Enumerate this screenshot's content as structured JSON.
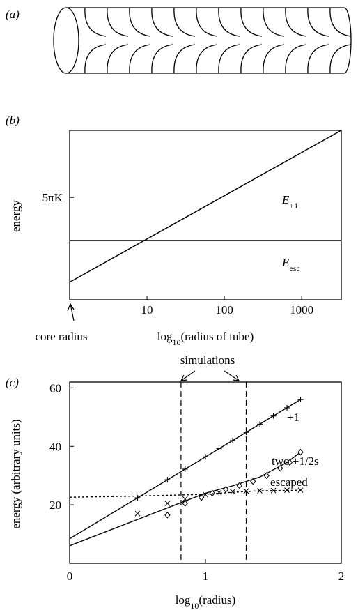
{
  "figure": {
    "panel_labels": [
      "(a)",
      "(b)",
      "(c)"
    ]
  },
  "chart_data": [
    {
      "type": "line",
      "xscale": "log",
      "xlim": [
        1,
        3250
      ],
      "ylim": [
        0,
        26
      ],
      "xticks": [
        10,
        100,
        1000
      ],
      "yticks": [
        {
          "value": 15.71,
          "label": "5πK"
        }
      ],
      "ylabel": "energy",
      "xlabel": [
        "log",
        "10",
        "(radius of tube)"
      ],
      "annotation": "core radius",
      "x": [
        1,
        3250
      ],
      "series": [
        {
          "name": "E",
          "name_sub": "+1",
          "color": "#000000",
          "values": [
            2.7,
            26
          ]
        },
        {
          "name": "E",
          "name_sub": "esc",
          "color": "#000000",
          "values": [
            9.1,
            9.1
          ]
        }
      ]
    },
    {
      "type": "scatter",
      "xlim": [
        0,
        2
      ],
      "ylim": [
        0,
        62
      ],
      "xticks": [
        0,
        1,
        2
      ],
      "yticks": [
        20,
        40,
        60
      ],
      "ylabel": "energy (arbitrary units)",
      "xlabel": [
        "log",
        "10",
        "(radius)"
      ],
      "vlines": [
        0.82,
        1.3
      ],
      "annotation": "simulations",
      "series": [
        {
          "name": "+1",
          "color": "#000000",
          "marker": "plus",
          "x": [
            0.5,
            0.72,
            0.85,
            1.0,
            1.1,
            1.2,
            1.3,
            1.4,
            1.5,
            1.6,
            1.7
          ],
          "values": [
            22.4,
            28.6,
            32.2,
            36.4,
            39.2,
            42,
            44.8,
            47.6,
            50.4,
            53.2,
            56
          ],
          "fit": {
            "dashed": false,
            "x": [
              0,
              1.7
            ],
            "values": [
              8.4,
              56
            ]
          }
        },
        {
          "name": "two +1/2s",
          "color": "#000000",
          "marker": "diamond",
          "x": [
            0.72,
            0.85,
            0.97,
            1.05,
            1.15,
            1.25,
            1.35,
            1.45,
            1.55,
            1.62,
            1.7
          ],
          "values": [
            16.5,
            20.5,
            22.5,
            24,
            25.3,
            26.6,
            28,
            30,
            32.5,
            34.5,
            38
          ],
          "fit": {
            "dashed": false,
            "x": [
              0,
              0.5,
              1.0,
              1.2,
              1.4,
              1.5,
              1.6,
              1.7
            ],
            "values": [
              6,
              15,
              24,
              26.5,
              29.5,
              32,
              34.5,
              38
            ]
          }
        },
        {
          "name": "escaped",
          "color": "#000000",
          "marker": "cross",
          "x": [
            0.5,
            0.72,
            0.85,
            1.0,
            1.1,
            1.2,
            1.3,
            1.4,
            1.5,
            1.6,
            1.7
          ],
          "values": [
            17,
            20.5,
            22,
            23.5,
            24.2,
            24.5,
            24.7,
            24.8,
            24.9,
            25,
            25
          ],
          "fit": {
            "dashed": true,
            "x": [
              0,
              0.5,
              1.0,
              1.2,
              1.4,
              1.7
            ],
            "values": [
              22.6,
              23,
              23.6,
              24.3,
              24.8,
              25
            ]
          }
        }
      ]
    }
  ]
}
